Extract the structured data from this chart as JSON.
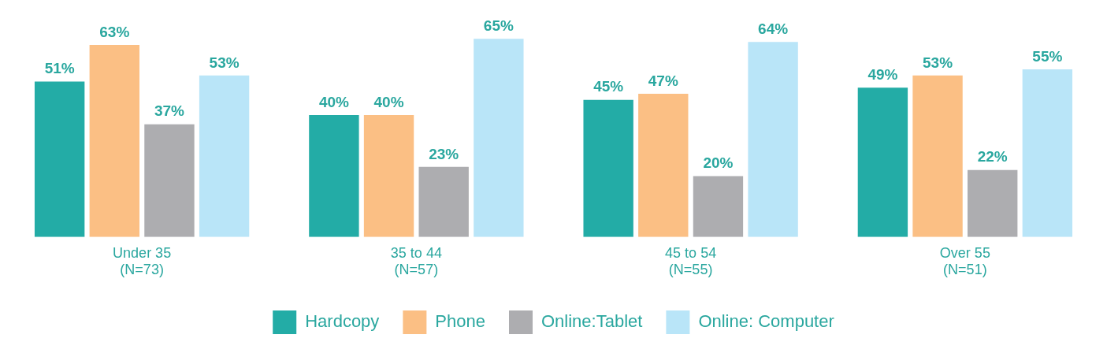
{
  "chart_data": {
    "type": "bar",
    "categories": [
      "Under 35\n(N=73)",
      "35 to 44\n(N=57)",
      "45 to 54\n(N=55)",
      "Over 55\n(N=51)"
    ],
    "series": [
      {
        "name": "Hardcopy",
        "color": "#23aca6",
        "values": [
          51,
          40,
          45,
          49
        ],
        "value_labels": [
          "51%",
          "40%",
          "45%",
          "49%"
        ]
      },
      {
        "name": "Phone",
        "color": "#fbbf84",
        "values": [
          63,
          40,
          47,
          53
        ],
        "value_labels": [
          "63%",
          "40%",
          "47%",
          "53%"
        ]
      },
      {
        "name": "Online:Tablet",
        "color": "#adadb0",
        "values": [
          37,
          23,
          20,
          22
        ],
        "value_labels": [
          "37%",
          "23%",
          "20%",
          "22%"
        ]
      },
      {
        "name": "Online: Computer",
        "color": "#b9e5f8",
        "values": [
          53,
          65,
          64,
          55
        ],
        "value_labels": [
          "53%",
          "65%",
          "64%",
          "55%"
        ]
      }
    ],
    "legend": "bottom",
    "grid": false
  }
}
